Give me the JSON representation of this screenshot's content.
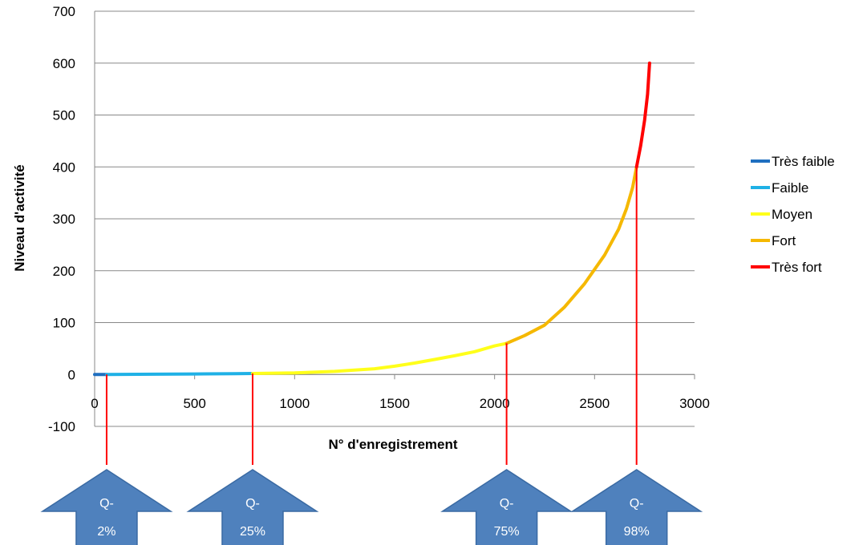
{
  "chart_data": {
    "type": "line",
    "xlabel": "N° d'enregistrement",
    "ylabel": "Niveau d'activité",
    "xlim": [
      0,
      3000
    ],
    "ylim": [
      -100,
      700
    ],
    "x_ticks": [
      0,
      500,
      1000,
      1500,
      2000,
      2500,
      3000
    ],
    "y_ticks": [
      -100,
      0,
      100,
      200,
      300,
      400,
      500,
      600,
      700
    ],
    "grid": "horizontal",
    "legend_position": "right",
    "series": [
      {
        "name": "Très faible",
        "color": "#1f6fc0",
        "x": [
          0,
          60
        ],
        "y": [
          0,
          0
        ]
      },
      {
        "name": "Faible",
        "color": "#1fb1e6",
        "x": [
          60,
          300,
          500,
          700,
          790
        ],
        "y": [
          0,
          0.5,
          1,
          1.5,
          2
        ]
      },
      {
        "name": "Moyen",
        "color": "#ffff1a",
        "x": [
          790,
          1000,
          1200,
          1400,
          1500,
          1600,
          1700,
          1800,
          1900,
          2000,
          2060
        ],
        "y": [
          2,
          3,
          6,
          11,
          16,
          22,
          29,
          36,
          44,
          55,
          60
        ]
      },
      {
        "name": "Fort",
        "color": "#f5b800",
        "x": [
          2060,
          2150,
          2250,
          2350,
          2450,
          2550,
          2620,
          2660,
          2690,
          2710
        ],
        "y": [
          60,
          75,
          95,
          130,
          175,
          230,
          280,
          320,
          360,
          400
        ]
      },
      {
        "name": "Très fort",
        "color": "#ff0000",
        "x": [
          2710,
          2730,
          2750,
          2765,
          2775
        ],
        "y": [
          400,
          440,
          490,
          540,
          600
        ]
      }
    ],
    "quantiles": [
      {
        "label_top": "Q-",
        "label_bottom": "2%",
        "x": 60
      },
      {
        "label_top": "Q-",
        "label_bottom": "25%",
        "x": 790
      },
      {
        "label_top": "Q-",
        "label_bottom": "75%",
        "x": 2060
      },
      {
        "label_top": "Q-",
        "label_bottom": "98%",
        "x": 2710
      }
    ],
    "colors": {
      "grid": "#888888",
      "axis": "#888888",
      "arrow_fill": "#4f81bd",
      "arrow_stroke": "#3a6aa3",
      "quantile_line": "#ff0000"
    }
  }
}
